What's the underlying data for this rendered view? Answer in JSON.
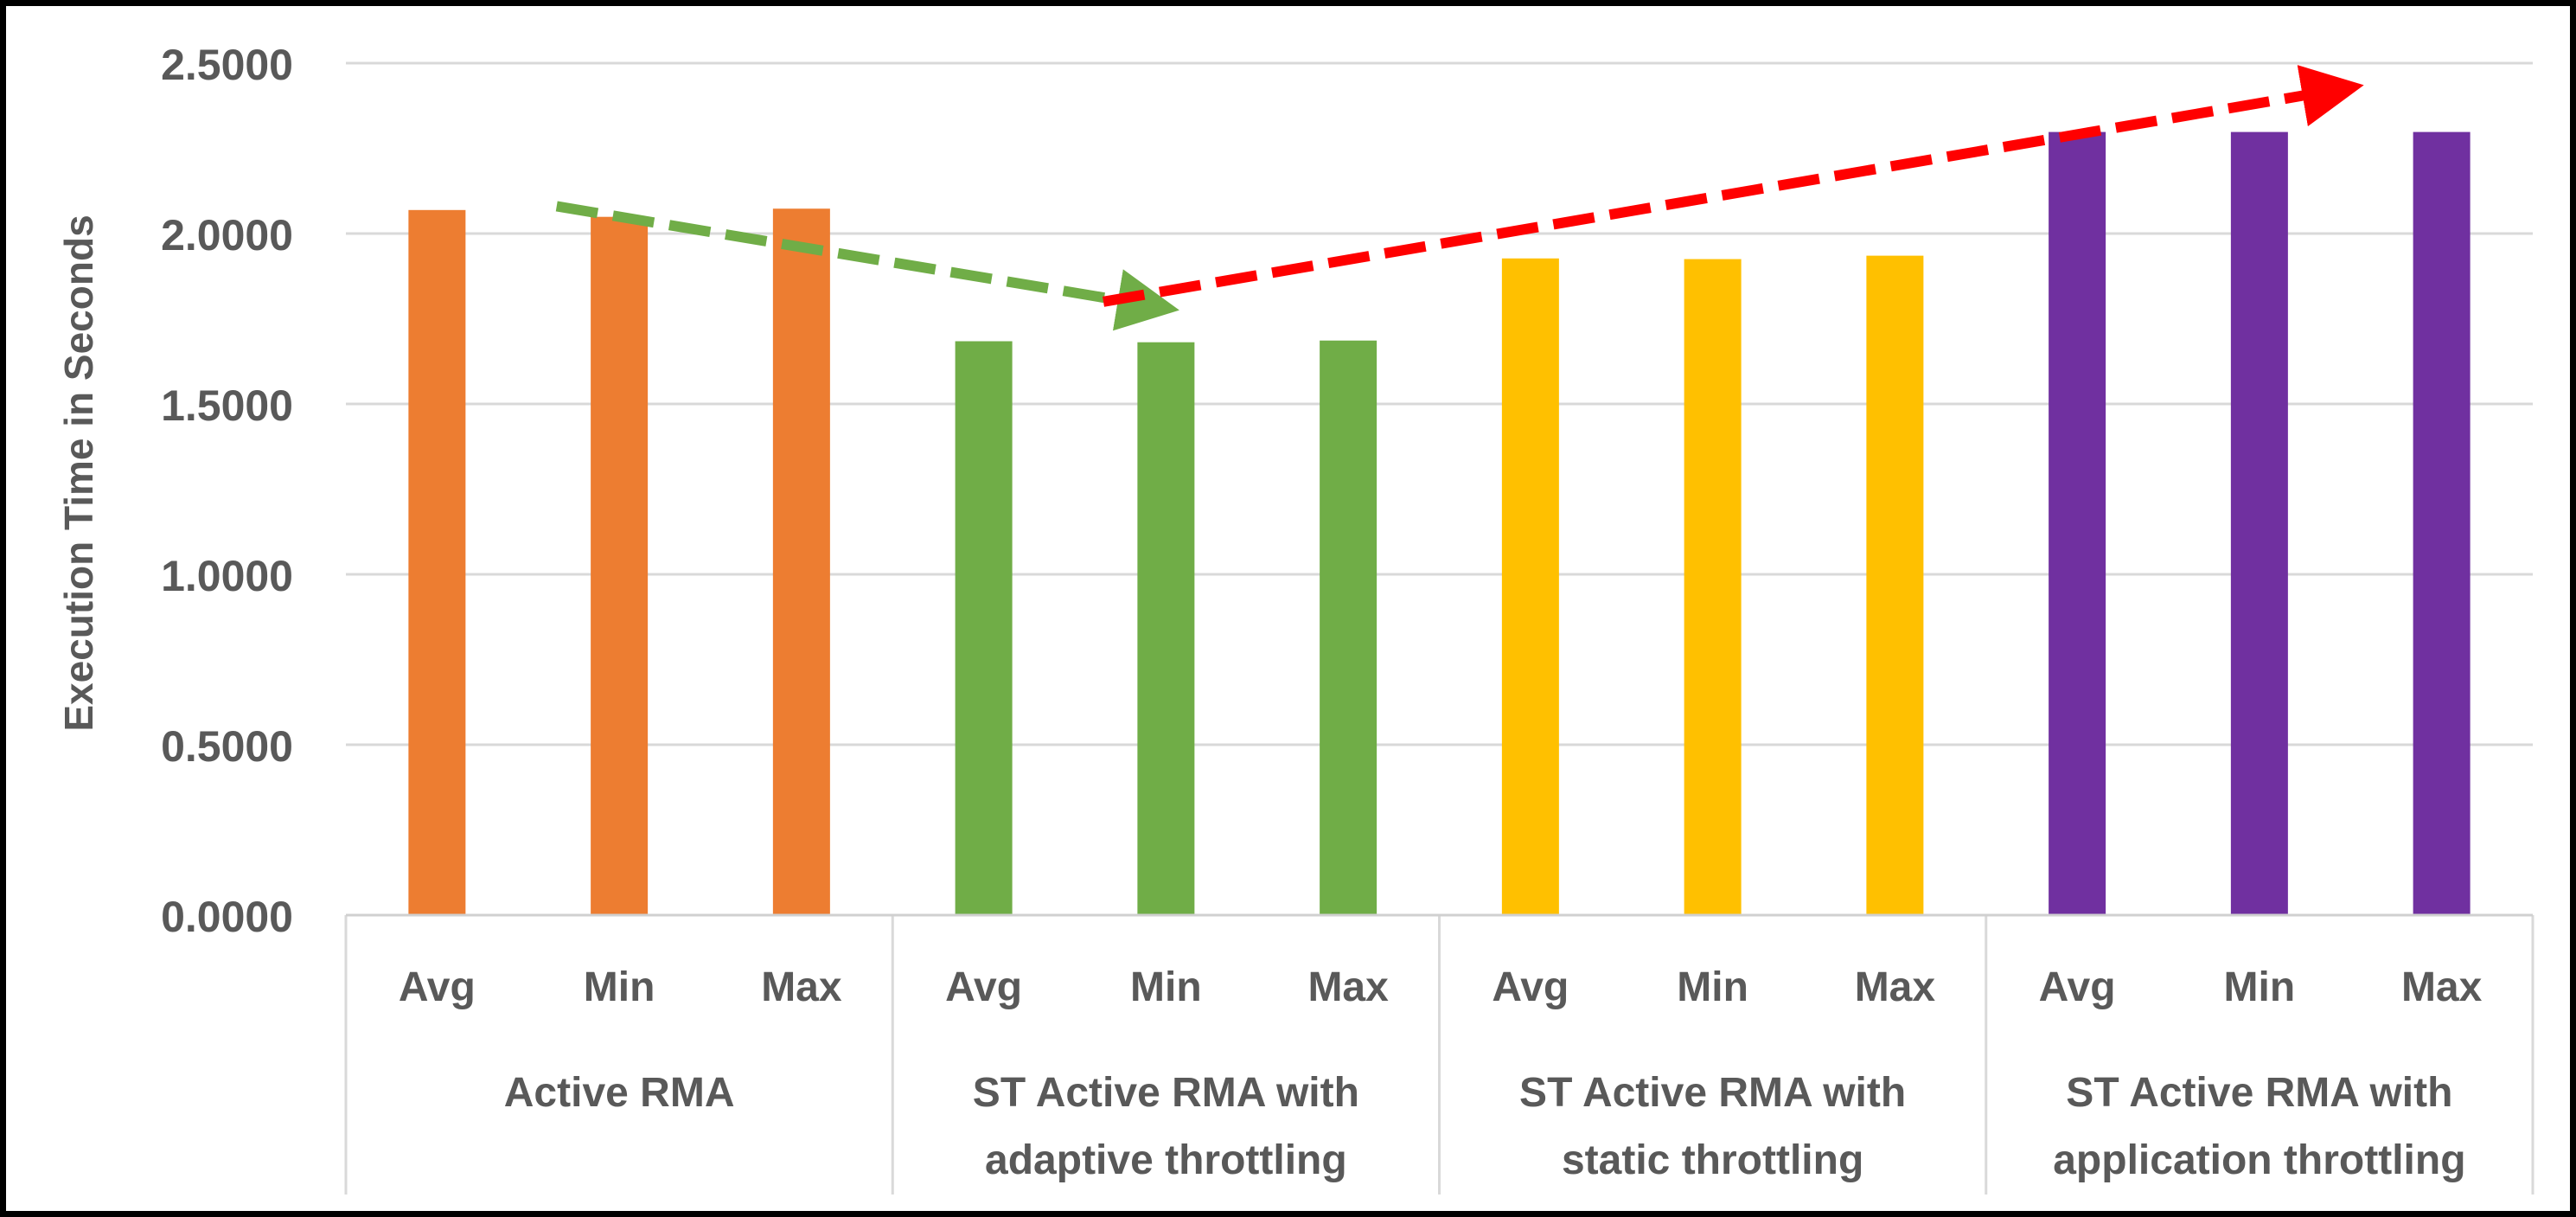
{
  "chart_data": {
    "type": "bar",
    "title": "",
    "ylabel": "Execution Time in Seconds",
    "xlabel": "",
    "ylim": [
      0,
      2.5
    ],
    "yticks": [
      "0.0000",
      "0.5000",
      "1.0000",
      "1.5000",
      "2.0000",
      "2.5000"
    ],
    "grid": true,
    "groups": [
      {
        "label": [
          "Active RMA"
        ],
        "color": "#ED7D31",
        "categories": [
          "Avg",
          "Min",
          "Max"
        ],
        "values": [
          2.069,
          2.049,
          2.073
        ]
      },
      {
        "label": [
          "ST Active RMA with",
          "adaptive throttling"
        ],
        "color": "#70AD47",
        "categories": [
          "Avg",
          "Min",
          "Max"
        ],
        "values": [
          1.684,
          1.681,
          1.686
        ]
      },
      {
        "label": [
          "ST Active RMA with",
          "static throttling"
        ],
        "color": "#FFC000",
        "categories": [
          "Avg",
          "Min",
          "Max"
        ],
        "values": [
          1.927,
          1.925,
          1.935
        ]
      },
      {
        "label": [
          "ST Active RMA with",
          "application throttling"
        ],
        "color": "#7030A0",
        "categories": [
          "Avg",
          "Min",
          "Max"
        ],
        "values": [
          2.298,
          2.298,
          2.298
        ]
      }
    ],
    "annotations": [
      {
        "type": "dashed-arrow",
        "color": "#70AD47",
        "from": {
          "bar": 1,
          "value": 2.08
        },
        "to": {
          "bar": 4,
          "value": 1.79
        }
      },
      {
        "type": "dashed-arrow",
        "color": "#FF0000",
        "from": {
          "bar": 4,
          "value": 1.8
        },
        "to": {
          "bar": 10.5,
          "value": 2.42
        }
      }
    ]
  }
}
